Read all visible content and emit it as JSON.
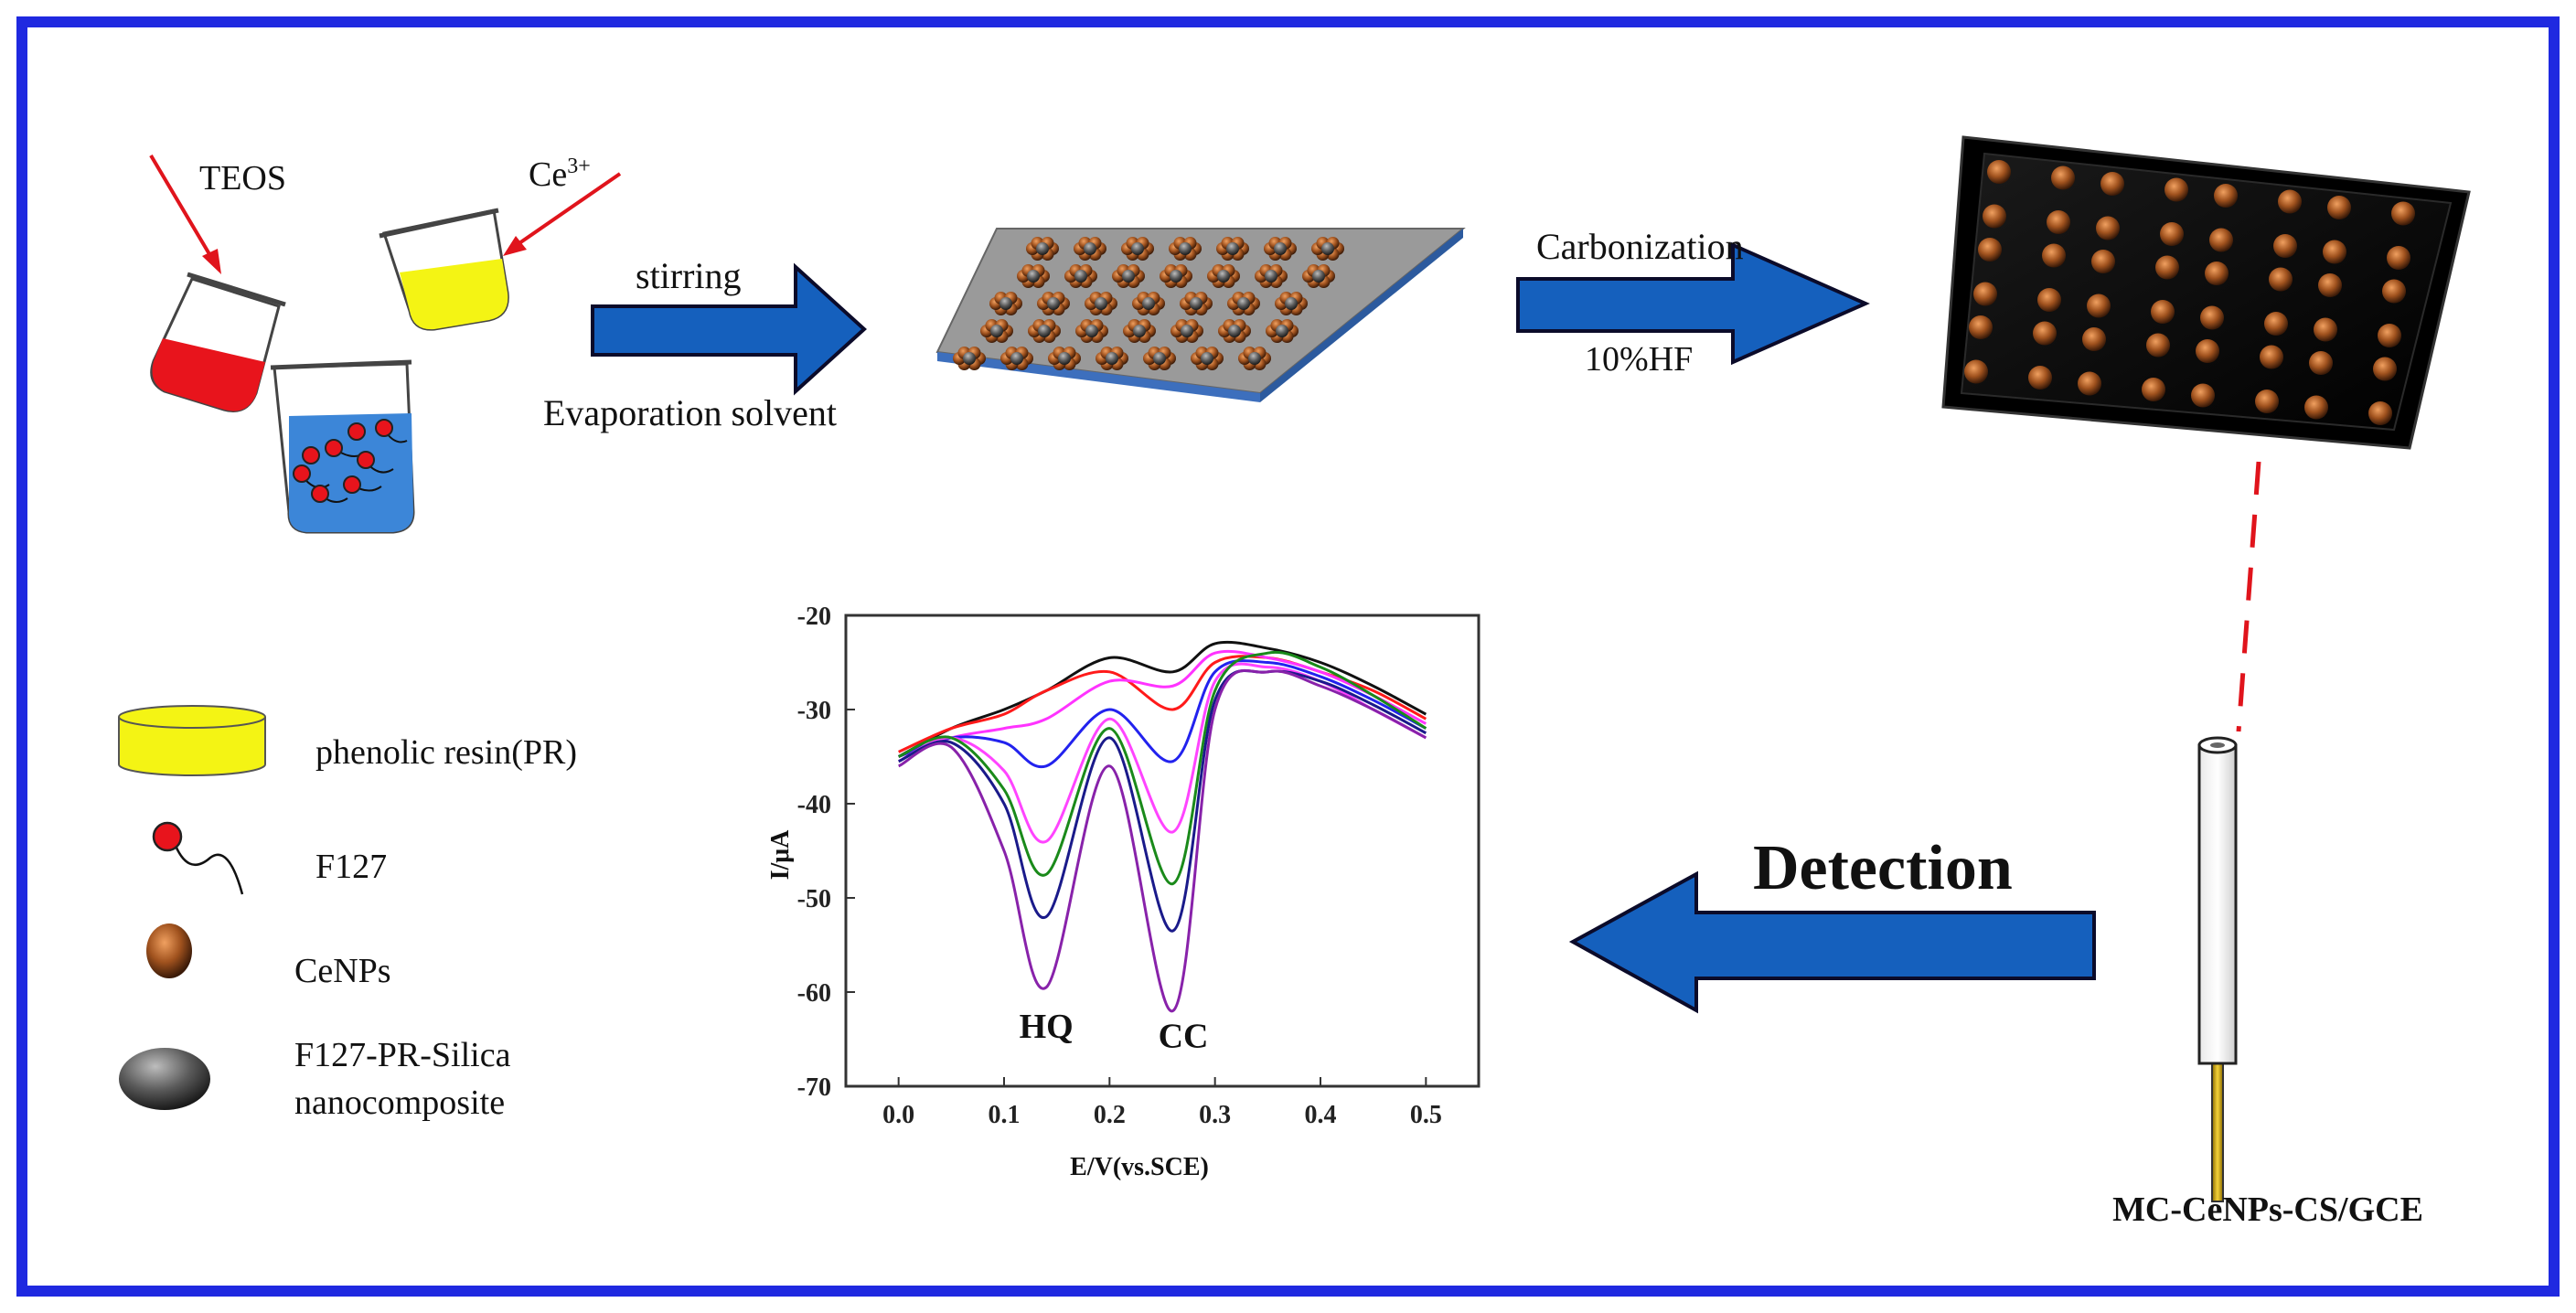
{
  "colors": {
    "frame": "#1f29e0",
    "arrow_fill": "#1560bd",
    "arrow_stroke": "#0b0b2a",
    "red_solution": "#e8141c",
    "yellow_solution": "#f4f414",
    "water": "#3c86d8",
    "cenp": "#a0521e",
    "silica": "#666666",
    "laser": "#e0141c"
  },
  "step1": {
    "teos_label": "TEOS",
    "ce_label": "Ce",
    "ce_superscript": "3+"
  },
  "arrow1": {
    "top_label": "stirring",
    "bottom_label": "Evaporation solvent"
  },
  "arrow2": {
    "top_label": "Carbonization",
    "bottom_label": "10%HF"
  },
  "detection_label": "Detection",
  "electrode_label": "MC-CeNPs-CS/GCE",
  "legend": [
    {
      "icon": "yellow-cylinder-icon",
      "text": "phenolic resin(PR)"
    },
    {
      "icon": "f127-icon",
      "text": "F127"
    },
    {
      "icon": "cenp-sphere-icon",
      "text": "CeNPs"
    },
    {
      "icon": "silica-sphere-icon",
      "text": "F127-PR-Silica",
      "text2": "nanocomposite"
    }
  ],
  "chart_data": {
    "type": "line",
    "title": "",
    "xlabel": "E/V(vs.SCE)",
    "ylabel": "I/μA",
    "xlim": [
      -0.05,
      0.55
    ],
    "ylim": [
      -70,
      -20
    ],
    "xticks": [
      0.0,
      0.1,
      0.2,
      0.3,
      0.4,
      0.5
    ],
    "xtick_labels": [
      "0.0",
      "0.1",
      "0.2",
      "0.3",
      "0.4",
      "0.5"
    ],
    "yticks": [
      -20,
      -30,
      -40,
      -50,
      -60,
      -70
    ],
    "ytick_labels": [
      "-20",
      "-30",
      "-40",
      "-50",
      "-60",
      "-70"
    ],
    "annotations": [
      {
        "text": "HQ",
        "x": 0.14,
        "y": -63.5
      },
      {
        "text": "CC",
        "x": 0.27,
        "y": -64.5
      }
    ],
    "series": [
      {
        "name": "black",
        "color": "#111111",
        "x": [
          0.0,
          0.05,
          0.1,
          0.14,
          0.2,
          0.26,
          0.3,
          0.35,
          0.4,
          0.45,
          0.5
        ],
        "y": [
          -35,
          -32,
          -30,
          -28,
          -24.5,
          -26,
          -23,
          -23.5,
          -25,
          -27.5,
          -30.5
        ]
      },
      {
        "name": "red",
        "color": "#ff1a1a",
        "x": [
          0.0,
          0.05,
          0.1,
          0.14,
          0.2,
          0.26,
          0.3,
          0.35,
          0.4,
          0.45,
          0.5
        ],
        "y": [
          -34.5,
          -32,
          -30.5,
          -28,
          -26,
          -30,
          -25,
          -24.5,
          -26,
          -28,
          -31
        ]
      },
      {
        "name": "magenta",
        "color": "#ff33ff",
        "x": [
          0.0,
          0.05,
          0.1,
          0.14,
          0.2,
          0.26,
          0.3,
          0.35,
          0.4,
          0.45,
          0.5
        ],
        "y": [
          -35,
          -33,
          -32,
          -31,
          -27,
          -27.5,
          -24,
          -24.5,
          -26,
          -28.5,
          -31.5
        ]
      },
      {
        "name": "blue",
        "color": "#2222ee",
        "x": [
          0.0,
          0.05,
          0.1,
          0.14,
          0.2,
          0.26,
          0.3,
          0.35,
          0.4,
          0.45,
          0.5
        ],
        "y": [
          -35,
          -33,
          -33.5,
          -36,
          -30,
          -35.5,
          -26,
          -25,
          -26.5,
          -29,
          -32
        ]
      },
      {
        "name": "pink",
        "color": "#ff44ff",
        "x": [
          0.0,
          0.05,
          0.1,
          0.14,
          0.2,
          0.26,
          0.3,
          0.35,
          0.4,
          0.45,
          0.5
        ],
        "y": [
          -35.5,
          -33,
          -36.5,
          -44,
          -31,
          -43,
          -27,
          -25.5,
          -27,
          -30,
          -33
        ]
      },
      {
        "name": "green",
        "color": "#1a8a1a",
        "x": [
          0.0,
          0.05,
          0.1,
          0.14,
          0.2,
          0.26,
          0.3,
          0.35,
          0.4,
          0.45,
          0.5
        ],
        "y": [
          -35,
          -33,
          -38.5,
          -47.5,
          -32,
          -48.5,
          -28,
          -24,
          -25.5,
          -28.5,
          -32
        ]
      },
      {
        "name": "navy",
        "color": "#1a1a8a",
        "x": [
          0.0,
          0.05,
          0.1,
          0.14,
          0.2,
          0.26,
          0.3,
          0.35,
          0.4,
          0.45,
          0.5
        ],
        "y": [
          -35.5,
          -33.5,
          -40,
          -52,
          -33,
          -53.5,
          -29,
          -26,
          -27,
          -29.5,
          -32.5
        ]
      },
      {
        "name": "purple",
        "color": "#8822aa",
        "x": [
          0.0,
          0.05,
          0.1,
          0.14,
          0.2,
          0.26,
          0.3,
          0.35,
          0.4,
          0.45,
          0.5
        ],
        "y": [
          -36,
          -34,
          -45,
          -59.5,
          -36,
          -62,
          -30,
          -26,
          -27.5,
          -30,
          -33
        ]
      }
    ]
  }
}
